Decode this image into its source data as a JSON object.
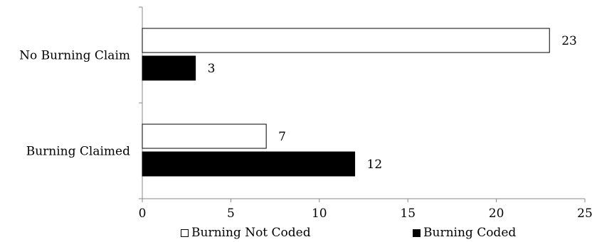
{
  "chart_data": {
    "type": "bar",
    "orientation": "horizontal",
    "categories": [
      "No Burning Claim",
      "Burning Claimed"
    ],
    "series": [
      {
        "name": "Burning Not Coded",
        "values": [
          23,
          7
        ],
        "color": "#ffffff",
        "stroke": "#000000"
      },
      {
        "name": "Burning Coded",
        "values": [
          3,
          12
        ],
        "color": "#000000",
        "stroke": "#000000"
      }
    ],
    "data_labels": true,
    "xlim": [
      0,
      25
    ],
    "x_ticks": [
      0,
      5,
      10,
      15,
      20,
      25
    ],
    "grid": false,
    "legend_position": "bottom"
  }
}
